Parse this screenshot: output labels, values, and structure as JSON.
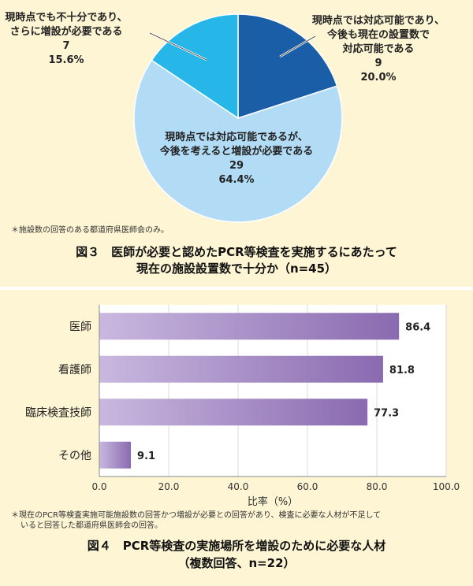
{
  "figure3": {
    "caption_line1": "図３　医師が必要と認めたPCR等検査を実施するにあたって",
    "caption_line2": "現在の施設設置数で十分か（n=45）",
    "note": "＊施設数の回答のある都道府県医師会のみ。",
    "chart_data": {
      "type": "pie",
      "slices": [
        {
          "lines": [
            "現時点では対応可能であり、",
            "今後も現在の設置数で",
            "対応可能である"
          ],
          "count": "9",
          "percent": "20.0%",
          "value": 20.0,
          "color": "#1a5ea8"
        },
        {
          "lines": [
            "現時点では対応可能であるが、",
            "今後を考えると増設が必要である"
          ],
          "count": "29",
          "percent": "64.4%",
          "value": 64.4,
          "color": "#b2dcf5"
        },
        {
          "lines": [
            "現時点でも不十分であり、",
            "さらに増設が必要である"
          ],
          "count": "7",
          "percent": "15.6%",
          "value": 15.6,
          "color": "#27b6e8"
        }
      ]
    }
  },
  "figure4": {
    "caption_line1": "図４　PCR等検査の実施場所を増設のために必要な人材",
    "caption_line2": "（複数回答、n=22）",
    "note_line1": "＊現在のPCR等検査実施可能施設数の回答かつ増設が必要との回答があり、検査に必要な人材が不足して",
    "note_line2": "いると回答した都道府県医師会の回答。",
    "chart_data": {
      "type": "bar",
      "orientation": "horizontal",
      "categories": [
        "医師",
        "看護師",
        "臨床検査技師",
        "その他"
      ],
      "values": [
        86.4,
        81.8,
        77.3,
        9.1
      ],
      "value_labels": [
        "86.4",
        "81.8",
        "77.3",
        "9.1"
      ],
      "xlabel": "比率（%）",
      "xlim": [
        0,
        100
      ],
      "xticks": [
        "0.0",
        "20.0",
        "40.0",
        "60.0",
        "80.0",
        "100.0"
      ],
      "bar_color": "#8a6ab0"
    }
  }
}
